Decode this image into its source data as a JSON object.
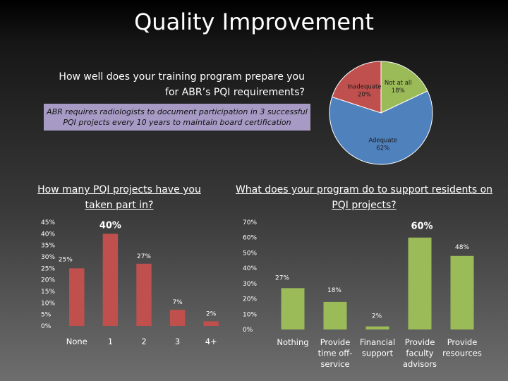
{
  "title": "Quality Improvement",
  "question1": "How well does your training program prepare you for ABR’s PQI requirements?",
  "note": "ABR requires radiologists to document participation in 3 successful PQI projects every 10 years to maintain board certification",
  "colors": {
    "pie_adequate": "#4f81bd",
    "pie_inadequate": "#c0504d",
    "pie_not_at_all": "#9bbb59",
    "bar_red": "#c0504d",
    "bar_green": "#9bbb59"
  },
  "chart_data": [
    {
      "type": "pie",
      "slices": [
        {
          "label": "Not at all",
          "value": 18,
          "value_label": "18%",
          "color": "#9bbb59"
        },
        {
          "label": "Adequate",
          "value": 62,
          "value_label": "62%",
          "color": "#4f81bd"
        },
        {
          "label": "Inadequate",
          "value": 20,
          "value_label": "20%",
          "color": "#c0504d"
        }
      ]
    },
    {
      "type": "bar",
      "title": "How many PQI projects have you taken part in?",
      "categories": [
        "None",
        "1",
        "2",
        "3",
        "4+"
      ],
      "values": [
        25,
        40,
        27,
        7,
        2
      ],
      "data_labels": [
        "25%",
        "40%",
        "27%",
        "7%",
        "2%"
      ],
      "yticks": [
        "0%",
        "5%",
        "10%",
        "15%",
        "20%",
        "25%",
        "30%",
        "35%",
        "40%",
        "45%"
      ],
      "ylim": [
        0,
        45
      ],
      "color": "#c0504d"
    },
    {
      "type": "bar",
      "title": "What does your program do to support residents on PQI projects?",
      "categories": [
        "Nothing",
        "Provide time off-service",
        "Financial support",
        "Provide faculty advisors",
        "Provide resources"
      ],
      "values": [
        27,
        18,
        2,
        60,
        48
      ],
      "data_labels": [
        "27%",
        "18%",
        "2%",
        "60%",
        "48%"
      ],
      "yticks": [
        "0%",
        "10%",
        "20%",
        "30%",
        "40%",
        "50%",
        "60%",
        "70%"
      ],
      "ylim": [
        0,
        70
      ],
      "color": "#9bbb59"
    }
  ]
}
